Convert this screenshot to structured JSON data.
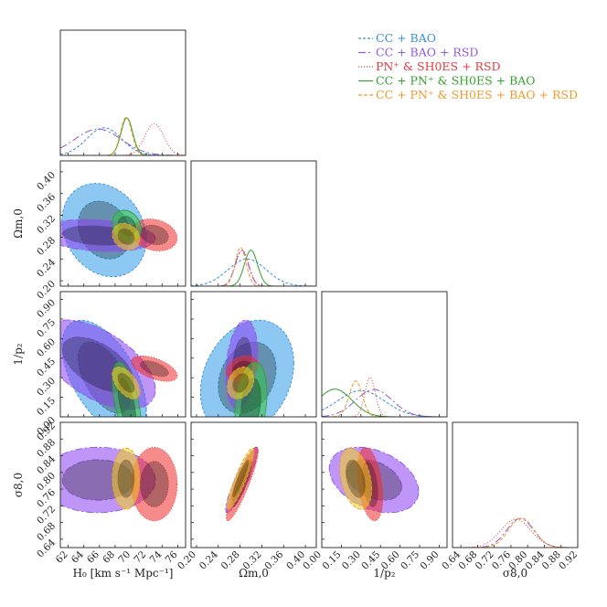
{
  "chart_data": {
    "type": "corner",
    "series": [
      {
        "key": "cc_bao",
        "name": "CC + BAO",
        "color": "#3a8fd9",
        "fill": "#2e9be6",
        "dash": "3 2",
        "H0": {
          "mean": 66.6,
          "sd": 2.2
        },
        "Om": {
          "mean": 0.293,
          "sd": 0.035
        },
        "p2": {
          "mean": 0.3,
          "sd": 0.18
        },
        "s8": null
      },
      {
        "key": "cc_bao_rsd",
        "name": "CC + BAO + RSD",
        "color": "#8c5ae0",
        "fill": "#8a3ff0",
        "dash": "8 3 2 3",
        "H0": {
          "mean": 65.8,
          "sd": 3.0
        },
        "Om": {
          "mean": 0.283,
          "sd": 0.012
        },
        "p2": {
          "mean": 0.4,
          "sd": 0.14
        },
        "s8": {
          "mean": 0.782,
          "sd": 0.032
        }
      },
      {
        "key": "pn_sh0es_rsd",
        "name": "PN⁺ & SH0ES + RSD",
        "color": "#e8393c",
        "fill": "#ee2b2b",
        "dash": "1 2",
        "H0": {
          "mean": 73.0,
          "sd": 1.2
        },
        "Om": {
          "mean": 0.284,
          "sd": 0.012
        },
        "p2": {
          "mean": 0.37,
          "sd": 0.04
        },
        "s8": {
          "mean": 0.772,
          "sd": 0.036
        }
      },
      {
        "key": "cc_pn_sh0es_bao",
        "name": "CC + PN⁺ & SH0ES + BAO",
        "color": "#33a02c",
        "fill": "#35c54a",
        "dash": "",
        "H0": {
          "mean": 69.5,
          "sd": 0.75
        },
        "Om": {
          "mean": 0.3,
          "sd": 0.012
        },
        "p2": {
          "mean": 0.1,
          "sd": 0.13
        },
        "s8": null
      },
      {
        "key": "cc_pn_sh0es_bao_rsd",
        "name": "CC + PN⁺ & SH0ES + BAO + RSD",
        "color": "#f09a2e",
        "fill": "#f2d41a",
        "dash": "4 2",
        "H0": {
          "mean": 69.4,
          "sd": 0.72
        },
        "Om": {
          "mean": 0.281,
          "sd": 0.01
        },
        "p2": {
          "mean": 0.26,
          "sd": 0.05
        },
        "s8": {
          "mean": 0.785,
          "sd": 0.03
        }
      }
    ],
    "parameters": [
      {
        "key": "H0",
        "label": "H₀ [km s⁻¹ Mpc⁻¹]",
        "range": [
          61,
          77
        ],
        "ticks": [
          "62",
          "64",
          "66",
          "68",
          "70",
          "72",
          "74",
          "76"
        ],
        "tick_values": [
          62,
          64,
          66,
          68,
          70,
          72,
          74,
          76
        ]
      },
      {
        "key": "Om",
        "label": "Ωm,0",
        "range": [
          0.19,
          0.42
        ],
        "ticks": [
          "0.20",
          "0.24",
          "0.28",
          "0.32",
          "0.36",
          "0.40"
        ],
        "tick_values": [
          0.2,
          0.24,
          0.28,
          0.32,
          0.36,
          0.4
        ]
      },
      {
        "key": "p2",
        "label": "1/p₂",
        "range": [
          0.0,
          0.96
        ],
        "ticks": [
          "0.00",
          "0.15",
          "0.30",
          "0.45",
          "0.60",
          "0.75",
          "0.90"
        ],
        "tick_values": [
          0.0,
          0.15,
          0.3,
          0.45,
          0.6,
          0.75,
          0.9
        ]
      },
      {
        "key": "s8",
        "label": "σ8,0",
        "range": [
          0.62,
          0.92
        ],
        "ticks": [
          "0.64",
          "0.68",
          "0.72",
          "0.76",
          "0.80",
          "0.84",
          "0.88",
          "0.92"
        ],
        "tick_values": [
          0.64,
          0.68,
          0.72,
          0.76,
          0.8,
          0.84,
          0.88,
          0.92
        ]
      }
    ],
    "legend_position": "top-right"
  }
}
